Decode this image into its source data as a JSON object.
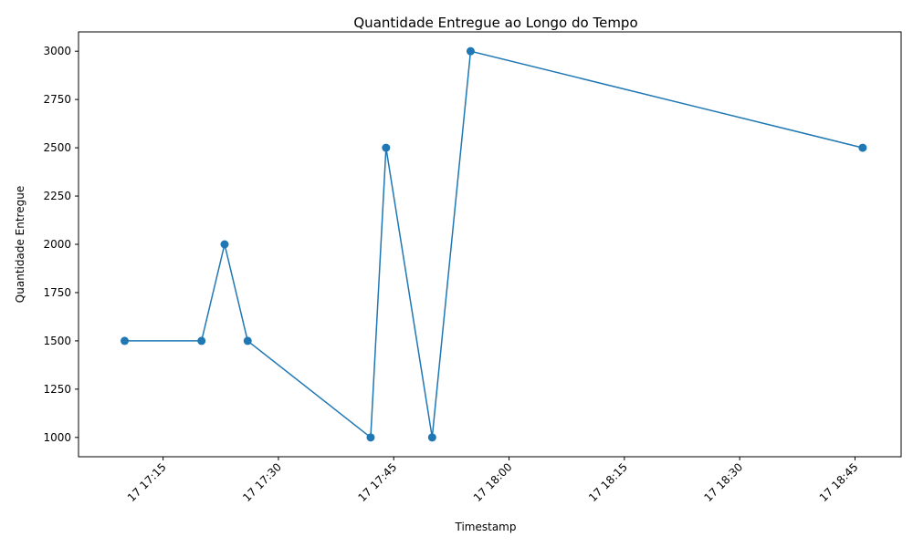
{
  "chart_data": {
    "type": "line",
    "title": "Quantidade Entregue ao Longo do Tempo",
    "xlabel": "Timestamp",
    "ylabel": "Quantidade Entregue",
    "x": [
      "17:10",
      "17:20",
      "17:23",
      "17:26",
      "17:42",
      "17:44",
      "17:50",
      "17:55",
      "18:46"
    ],
    "values": [
      1500,
      1500,
      2000,
      1500,
      1000,
      2500,
      1000,
      3000,
      2500
    ],
    "xlim": [
      "17:04",
      "18:51"
    ],
    "ylim": [
      900,
      3100
    ],
    "x_ticks": [
      "17:15",
      "17:30",
      "17:45",
      "18:00",
      "18:15",
      "18:30",
      "18:45"
    ],
    "x_tick_labels": [
      "17 17:15",
      "17 17:30",
      "17 17:45",
      "17 18:00",
      "17 18:15",
      "17 18:30",
      "17 18:45"
    ],
    "y_ticks": [
      1000,
      1250,
      1500,
      1750,
      2000,
      2250,
      2500,
      2750,
      3000
    ],
    "y_tick_labels": [
      "1000",
      "1250",
      "1500",
      "1750",
      "2000",
      "2250",
      "2500",
      "2750",
      "3000"
    ],
    "grid": false,
    "line_color": "#1f77b4",
    "marker": "circle"
  }
}
